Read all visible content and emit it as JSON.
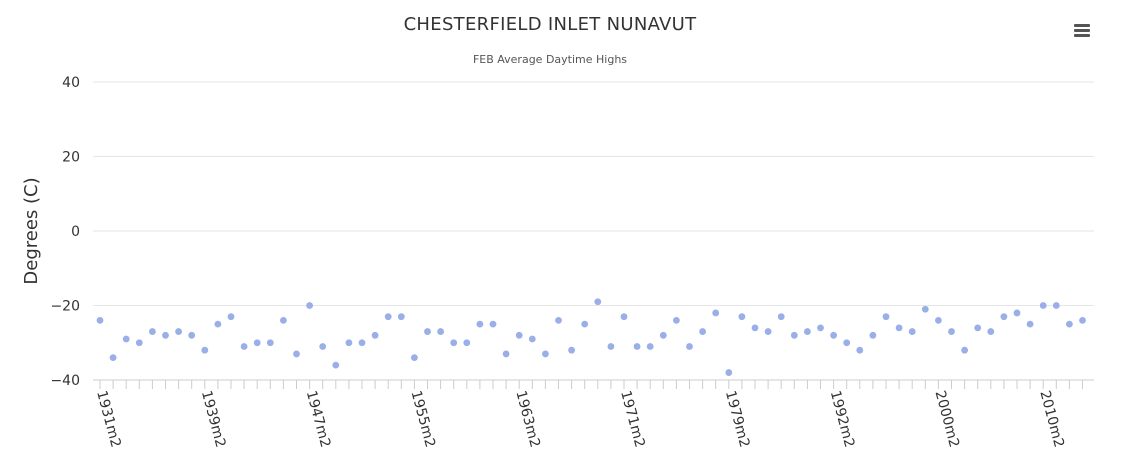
{
  "chart_data": {
    "type": "scatter",
    "title": "CHESTERFIELD INLET NUNAVUT",
    "subtitle": "FEB Average Daytime Highs",
    "ylabel": "Degrees (C)",
    "xlabel": "",
    "ylim": [
      -40,
      40
    ],
    "yticks": [
      40,
      20,
      0,
      -20,
      -40
    ],
    "grid": true,
    "legend": "none",
    "point_color": "#9aaee8",
    "x_tick_labels": [
      "1931m2",
      "1939m2",
      "1947m2",
      "1955m2",
      "1963m2",
      "1971m2",
      "1979m2",
      "1992m2",
      "2000m2",
      "2010m2"
    ],
    "x_tick_label_positions": [
      0,
      8,
      16,
      24,
      32,
      40,
      48,
      56,
      64,
      72
    ],
    "values": [
      -24,
      -34,
      -29,
      -30,
      -27,
      -28,
      -27,
      -28,
      -32,
      -25,
      -23,
      -31,
      -30,
      -30,
      -24,
      -33,
      -20,
      -31,
      -36,
      -30,
      -30,
      -28,
      -23,
      -23,
      -34,
      -27,
      -27,
      -30,
      -30,
      -25,
      -25,
      -33,
      -28,
      -29,
      -33,
      -24,
      -32,
      -25,
      -19,
      -31,
      -23,
      -31,
      -31,
      -28,
      -24,
      -31,
      -27,
      -22,
      -38,
      -23,
      -26,
      -27,
      -23,
      -28,
      -27,
      -26,
      -28,
      -30,
      -32,
      -28,
      -23,
      -26,
      -27,
      -21,
      -24,
      -27,
      -32,
      -26,
      -27,
      -23,
      -22,
      -25,
      -20,
      -20,
      -25,
      -24
    ]
  },
  "ui": {
    "menu_icon": "hamburger-menu-icon"
  }
}
